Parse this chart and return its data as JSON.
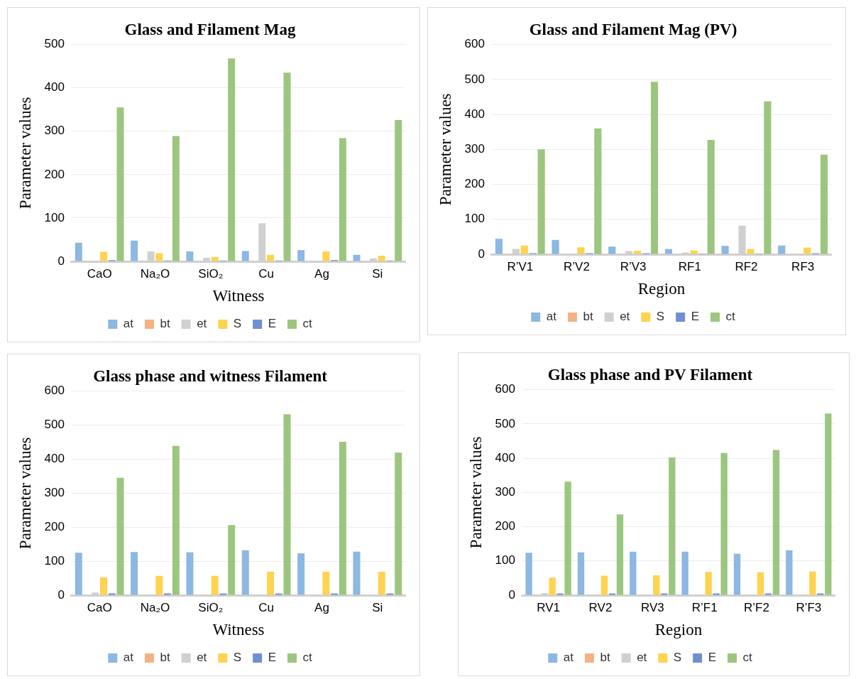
{
  "chart_data": [
    {
      "type": "bar",
      "title": "Glass and Filament Mag",
      "xlabel": "Witness",
      "ylabel": "Parameter values",
      "categories": [
        "CaO",
        "Na₂O",
        "SiO₂",
        "Cu",
        "Ag",
        "Si"
      ],
      "ylim": [
        0,
        500
      ],
      "yticks": [
        0,
        100,
        200,
        300,
        400,
        500
      ],
      "grid": "y",
      "legend": "bottom",
      "series": [
        {
          "name": "at",
          "color": "#8cb8e2",
          "values": [
            43,
            48,
            23,
            24,
            26,
            15
          ]
        },
        {
          "name": "bt",
          "color": "#f4b183",
          "values": [
            0,
            0,
            0,
            0,
            0,
            0
          ]
        },
        {
          "name": "et",
          "color": "#d0d0d0",
          "values": [
            null,
            23,
            8,
            88,
            1,
            7
          ]
        },
        {
          "name": "S",
          "color": "#ffd34f",
          "values": [
            22,
            19,
            10,
            15,
            23,
            13
          ]
        },
        {
          "name": "E",
          "color": "#6f8fd0",
          "values": [
            3,
            2,
            2,
            2,
            3,
            2
          ]
        },
        {
          "name": "ct",
          "color": "#9cc67f",
          "values": [
            355,
            289,
            468,
            435,
            284,
            326
          ]
        }
      ]
    },
    {
      "type": "bar",
      "title": "Glass and Filament Mag (PV)",
      "xlabel": "Region",
      "ylabel": "Parameter values",
      "categories": [
        "R’V1",
        "R’V2",
        "R’V3",
        "RF1",
        "RF2",
        "RF3"
      ],
      "ylim": [
        0,
        600
      ],
      "yticks": [
        0,
        100,
        200,
        300,
        400,
        500,
        600
      ],
      "grid": "y",
      "legend": "bottom",
      "series": [
        {
          "name": "at",
          "color": "#8cb8e2",
          "values": [
            44,
            41,
            22,
            15,
            24,
            25
          ]
        },
        {
          "name": "bt",
          "color": "#f4b183",
          "values": [
            0,
            0,
            0,
            0,
            0,
            0
          ]
        },
        {
          "name": "et",
          "color": "#d0d0d0",
          "values": [
            15,
            2,
            9,
            5,
            82,
            1
          ]
        },
        {
          "name": "S",
          "color": "#ffd34f",
          "values": [
            25,
            20,
            10,
            11,
            15,
            19
          ]
        },
        {
          "name": "E",
          "color": "#6f8fd0",
          "values": [
            3,
            3,
            3,
            2,
            2,
            3
          ]
        },
        {
          "name": "ct",
          "color": "#9cc67f",
          "values": [
            300,
            360,
            493,
            327,
            437,
            285
          ]
        }
      ]
    },
    {
      "type": "bar",
      "title": "Glass phase and witness Filament",
      "xlabel": "Witness",
      "ylabel": "Parameter values",
      "categories": [
        "CaO",
        "Na₂O",
        "SiO₂",
        "Cu",
        "Ag",
        "Si"
      ],
      "ylim": [
        0,
        600
      ],
      "yticks": [
        0,
        100,
        200,
        300,
        400,
        500,
        600
      ],
      "grid": "y",
      "legend": "bottom",
      "series": [
        {
          "name": "at",
          "color": "#8cb8e2",
          "values": [
            125,
            127,
            126,
            132,
            123,
            128
          ]
        },
        {
          "name": "bt",
          "color": "#f4b183",
          "values": [
            0,
            0,
            0,
            0,
            0,
            0
          ]
        },
        {
          "name": "et",
          "color": "#d0d0d0",
          "values": [
            8,
            0,
            2,
            0,
            0,
            0
          ]
        },
        {
          "name": "S",
          "color": "#ffd34f",
          "values": [
            52,
            57,
            57,
            69,
            69,
            69
          ]
        },
        {
          "name": "E",
          "color": "#6f8fd0",
          "values": [
            5,
            5,
            5,
            5,
            5,
            5
          ]
        },
        {
          "name": "ct",
          "color": "#9cc67f",
          "values": [
            345,
            439,
            206,
            532,
            451,
            419
          ]
        }
      ]
    },
    {
      "type": "bar",
      "title": "Glass phase and PV Filament",
      "xlabel": "Region",
      "ylabel": "Parameter values",
      "categories": [
        "RV1",
        "RV2",
        "RV3",
        "R’F1",
        "R’F2",
        "R’F3"
      ],
      "ylim": [
        0,
        600
      ],
      "yticks": [
        0,
        100,
        200,
        300,
        400,
        500,
        600
      ],
      "grid": "y",
      "legend": "bottom",
      "series": [
        {
          "name": "at",
          "color": "#8cb8e2",
          "values": [
            124,
            125,
            127,
            127,
            121,
            131
          ]
        },
        {
          "name": "bt",
          "color": "#f4b183",
          "values": [
            0,
            0,
            0,
            0,
            0,
            0
          ]
        },
        {
          "name": "et",
          "color": "#d0d0d0",
          "values": [
            6,
            0,
            2,
            0,
            2,
            0
          ]
        },
        {
          "name": "S",
          "color": "#ffd34f",
          "values": [
            51,
            57,
            58,
            68,
            67,
            69
          ]
        },
        {
          "name": "E",
          "color": "#6f8fd0",
          "values": [
            5,
            5,
            5,
            5,
            5,
            5
          ]
        },
        {
          "name": "ct",
          "color": "#9cc67f",
          "values": [
            331,
            236,
            402,
            415,
            424,
            530
          ]
        }
      ]
    }
  ]
}
